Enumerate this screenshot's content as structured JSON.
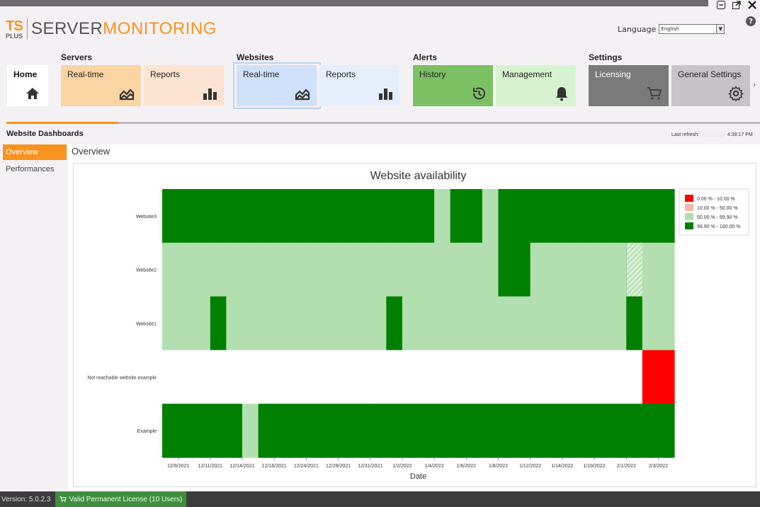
{
  "window": {
    "minimize_icon": "minimize-icon",
    "popout_icon": "popout-icon",
    "close_icon": "close-icon"
  },
  "logo": {
    "ts": "TS",
    "plus": "PLUS",
    "server": "SERVER",
    "monitoring": "MONITORING"
  },
  "language": {
    "label": "Language",
    "value": "English"
  },
  "help": "?",
  "groups": {
    "servers": "Servers",
    "websites": "Websites",
    "alerts": "Alerts",
    "settings": "Settings"
  },
  "tiles": {
    "home": "Home",
    "servers_realtime": "Real-time",
    "servers_reports": "Reports",
    "websites_realtime": "Real-time",
    "websites_reports": "Reports",
    "alerts_history": "History",
    "alerts_management": "Management",
    "settings_licensing": "Licensing",
    "settings_general": "General Settings"
  },
  "colors": {
    "accent": "#f7931e",
    "servers_realtime": "#fbd4a4",
    "servers_reports": "#fde3d2",
    "websites_realtime": "#cfe0fa",
    "websites_reports": "#e6eefc",
    "alerts_history": "#7cc064",
    "alerts_management": "#d6f3d0",
    "settings_licensing": "#7a7a7a",
    "settings_general": "#c6c4c6"
  },
  "section_title": "Website Dashboards",
  "refresh": {
    "label": "Last refresh:",
    "time": "4:39:17 PM"
  },
  "sidebar": {
    "items": [
      "Overview",
      "Performances"
    ]
  },
  "overview_title": "Overview",
  "chart_data": {
    "type": "heatmap",
    "title": "Website availability",
    "xlabel": "Date",
    "ylabel": "",
    "x_tick_labels": [
      "12/9/2021",
      "12/11/2021",
      "12/14/2021",
      "12/16/2021",
      "12/24/2021",
      "12/29/2021",
      "12/31/2021",
      "1/2/2022",
      "1/4/2022",
      "1/6/2022",
      "1/8/2022",
      "1/12/2022",
      "1/14/2022",
      "1/19/2022",
      "2/1/2022",
      "2/3/2022"
    ],
    "rows": [
      "Website3",
      "Website2",
      "Website1",
      "Not reachable website example",
      "Example"
    ],
    "legend": [
      {
        "label": "0.00 % - 10.00 %",
        "color": "#ff0000"
      },
      {
        "label": "10.00 % - 50.00 %",
        "color": "#f2b8a6"
      },
      {
        "label": "50.00 % - 99.90 %",
        "color": "#b3dfb0"
      },
      {
        "label": "99.90 % - 100.00 %",
        "color": "#008000"
      }
    ],
    "legend_position": "top-right",
    "grid": false,
    "cells": {
      "Website3": [
        "99.90 % - 100.00 %",
        "99.90 % - 100.00 %",
        "99.90 % - 100.00 %",
        "99.90 % - 100.00 %",
        "99.90 % - 100.00 %",
        "99.90 % - 100.00 %",
        "99.90 % - 100.00 %",
        "99.90 % - 100.00 %",
        "99.90 % - 100.00 %",
        "99.90 % - 100.00 %",
        "99.90 % - 100.00 %",
        "99.90 % - 100.00 %",
        "99.90 % - 100.00 %",
        "99.90 % - 100.00 %",
        "99.90 % - 100.00 %",
        "99.90 % - 100.00 %",
        "99.90 % - 100.00 %",
        "50.00 % - 99.90 %",
        "99.90 % - 100.00 %",
        "99.90 % - 100.00 %",
        "50.00 % - 99.90 %",
        "99.90 % - 100.00 %",
        "99.90 % - 100.00 %",
        "99.90 % - 100.00 %",
        "99.90 % - 100.00 %",
        "99.90 % - 100.00 %",
        "99.90 % - 100.00 %",
        "99.90 % - 100.00 %",
        "99.90 % - 100.00 %",
        "99.90 % - 100.00 %",
        "99.90 % - 100.00 %",
        "99.90 % - 100.00 %"
      ],
      "Website2": [
        "50.00 % - 99.90 %",
        "50.00 % - 99.90 %",
        "50.00 % - 99.90 %",
        "50.00 % - 99.90 %",
        "50.00 % - 99.90 %",
        "50.00 % - 99.90 %",
        "50.00 % - 99.90 %",
        "50.00 % - 99.90 %",
        "50.00 % - 99.90 %",
        "50.00 % - 99.90 %",
        "50.00 % - 99.90 %",
        "50.00 % - 99.90 %",
        "50.00 % - 99.90 %",
        "50.00 % - 99.90 %",
        "50.00 % - 99.90 %",
        "50.00 % - 99.90 %",
        "50.00 % - 99.90 %",
        "50.00 % - 99.90 %",
        "50.00 % - 99.90 %",
        "50.00 % - 99.90 %",
        "50.00 % - 99.90 %",
        "99.90 % - 100.00 %",
        "99.90 % - 100.00 %",
        "50.00 % - 99.90 %",
        "50.00 % - 99.90 %",
        "50.00 % - 99.90 %",
        "50.00 % - 99.90 %",
        "50.00 % - 99.90 %",
        "50.00 % - 99.90 %",
        "",
        "50.00 % - 99.90 %",
        "50.00 % - 99.90 %"
      ],
      "Website1": [
        "50.00 % - 99.90 %",
        "50.00 % - 99.90 %",
        "50.00 % - 99.90 %",
        "99.90 % - 100.00 %",
        "50.00 % - 99.90 %",
        "50.00 % - 99.90 %",
        "50.00 % - 99.90 %",
        "50.00 % - 99.90 %",
        "50.00 % - 99.90 %",
        "50.00 % - 99.90 %",
        "50.00 % - 99.90 %",
        "50.00 % - 99.90 %",
        "50.00 % - 99.90 %",
        "50.00 % - 99.90 %",
        "99.90 % - 100.00 %",
        "50.00 % - 99.90 %",
        "50.00 % - 99.90 %",
        "50.00 % - 99.90 %",
        "50.00 % - 99.90 %",
        "50.00 % - 99.90 %",
        "50.00 % - 99.90 %",
        "50.00 % - 99.90 %",
        "50.00 % - 99.90 %",
        "50.00 % - 99.90 %",
        "50.00 % - 99.90 %",
        "50.00 % - 99.90 %",
        "50.00 % - 99.90 %",
        "50.00 % - 99.90 %",
        "50.00 % - 99.90 %",
        "99.90 % - 100.00 %",
        "50.00 % - 99.90 %",
        "50.00 % - 99.90 %"
      ],
      "Not reachable website example": [
        "",
        "",
        "",
        "",
        "",
        "",
        "",
        "",
        "",
        "",
        "",
        "",
        "",
        "",
        "",
        "",
        "",
        "",
        "",
        "",
        "",
        "",
        "",
        "",
        "",
        "",
        "",
        "",
        "",
        "",
        "0.00 % - 10.00 %",
        "0.00 % - 10.00 %"
      ],
      "Example": [
        "99.90 % - 100.00 %",
        "99.90 % - 100.00 %",
        "99.90 % - 100.00 %",
        "99.90 % - 100.00 %",
        "99.90 % - 100.00 %",
        "50.00 % - 99.90 %",
        "99.90 % - 100.00 %",
        "99.90 % - 100.00 %",
        "99.90 % - 100.00 %",
        "99.90 % - 100.00 %",
        "99.90 % - 100.00 %",
        "99.90 % - 100.00 %",
        "99.90 % - 100.00 %",
        "99.90 % - 100.00 %",
        "99.90 % - 100.00 %",
        "99.90 % - 100.00 %",
        "99.90 % - 100.00 %",
        "99.90 % - 100.00 %",
        "99.90 % - 100.00 %",
        "99.90 % - 100.00 %",
        "99.90 % - 100.00 %",
        "99.90 % - 100.00 %",
        "99.90 % - 100.00 %",
        "99.90 % - 100.00 %",
        "99.90 % - 100.00 %",
        "99.90 % - 100.00 %",
        "99.90 % - 100.00 %",
        "99.90 % - 100.00 %",
        "99.90 % - 100.00 %",
        "99.90 % - 100.00 %",
        "99.90 % - 100.00 %",
        "99.90 % - 100.00 %"
      ]
    }
  },
  "status": {
    "version": "Version: 5.0.2.3",
    "license": "Valid Permanent License (10 Users)"
  }
}
